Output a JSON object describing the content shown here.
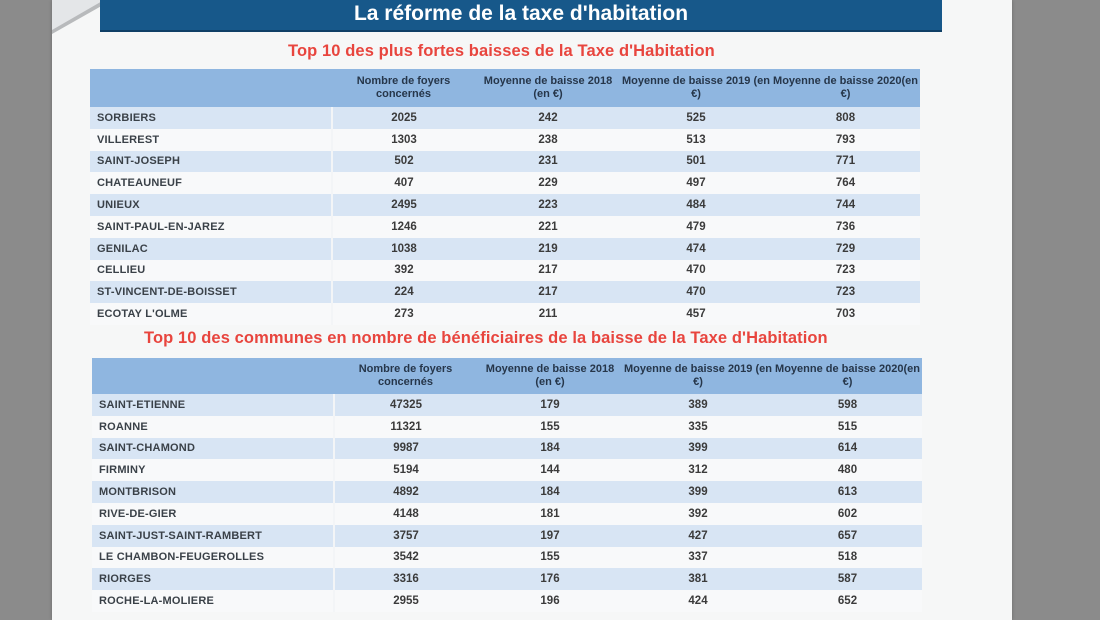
{
  "document_title": "La réforme de la taxe d'habitation",
  "table1": {
    "title": "Top 10 des plus fortes baisses de la Taxe d'Habitation",
    "headers": [
      "Nombre de foyers concernés",
      "Moyenne de baisse 2018 (en €)",
      "Moyenne de baisse 2019 (en €)",
      "Moyenne de baisse 2020(en €)"
    ],
    "rows": [
      {
        "city": "SORBIERS",
        "foyers": "2025",
        "b2018": "242",
        "b2019": "525",
        "b2020": "808"
      },
      {
        "city": "VILLEREST",
        "foyers": "1303",
        "b2018": "238",
        "b2019": "513",
        "b2020": "793"
      },
      {
        "city": "SAINT-JOSEPH",
        "foyers": "502",
        "b2018": "231",
        "b2019": "501",
        "b2020": "771"
      },
      {
        "city": "CHATEAUNEUF",
        "foyers": "407",
        "b2018": "229",
        "b2019": "497",
        "b2020": "764"
      },
      {
        "city": "UNIEUX",
        "foyers": "2495",
        "b2018": "223",
        "b2019": "484",
        "b2020": "744"
      },
      {
        "city": "SAINT-PAUL-EN-JAREZ",
        "foyers": "1246",
        "b2018": "221",
        "b2019": "479",
        "b2020": "736"
      },
      {
        "city": "GENILAC",
        "foyers": "1038",
        "b2018": "219",
        "b2019": "474",
        "b2020": "729"
      },
      {
        "city": "CELLIEU",
        "foyers": "392",
        "b2018": "217",
        "b2019": "470",
        "b2020": "723"
      },
      {
        "city": "ST-VINCENT-DE-BOISSET",
        "foyers": "224",
        "b2018": "217",
        "b2019": "470",
        "b2020": "723"
      },
      {
        "city": "ECOTAY L'OLME",
        "foyers": "273",
        "b2018": "211",
        "b2019": "457",
        "b2020": "703"
      }
    ]
  },
  "table2": {
    "title": "Top 10 des communes en nombre de bénéficiaires de la baisse de la Taxe d'Habitation",
    "headers": [
      "Nombre de foyers concernés",
      "Moyenne de baisse 2018 (en €)",
      "Moyenne de baisse 2019 (en €)",
      "Moyenne de baisse 2020(en €)"
    ],
    "rows": [
      {
        "city": "SAINT-ETIENNE",
        "foyers": "47325",
        "b2018": "179",
        "b2019": "389",
        "b2020": "598"
      },
      {
        "city": "ROANNE",
        "foyers": "11321",
        "b2018": "155",
        "b2019": "335",
        "b2020": "515"
      },
      {
        "city": "SAINT-CHAMOND",
        "foyers": "9987",
        "b2018": "184",
        "b2019": "399",
        "b2020": "614"
      },
      {
        "city": "FIRMINY",
        "foyers": "5194",
        "b2018": "144",
        "b2019": "312",
        "b2020": "480"
      },
      {
        "city": "MONTBRISON",
        "foyers": "4892",
        "b2018": "184",
        "b2019": "399",
        "b2020": "613"
      },
      {
        "city": "RIVE-DE-GIER",
        "foyers": "4148",
        "b2018": "181",
        "b2019": "392",
        "b2020": "602"
      },
      {
        "city": "SAINT-JUST-SAINT-RAMBERT",
        "foyers": "3757",
        "b2018": "197",
        "b2019": "427",
        "b2020": "657"
      },
      {
        "city": "LE CHAMBON-FEUGEROLLES",
        "foyers": "3542",
        "b2018": "155",
        "b2019": "337",
        "b2020": "518"
      },
      {
        "city": "RIORGES",
        "foyers": "3316",
        "b2018": "176",
        "b2019": "381",
        "b2020": "587"
      },
      {
        "city": "ROCHE-LA-MOLIERE",
        "foyers": "2955",
        "b2018": "196",
        "b2019": "424",
        "b2020": "652"
      }
    ]
  }
}
